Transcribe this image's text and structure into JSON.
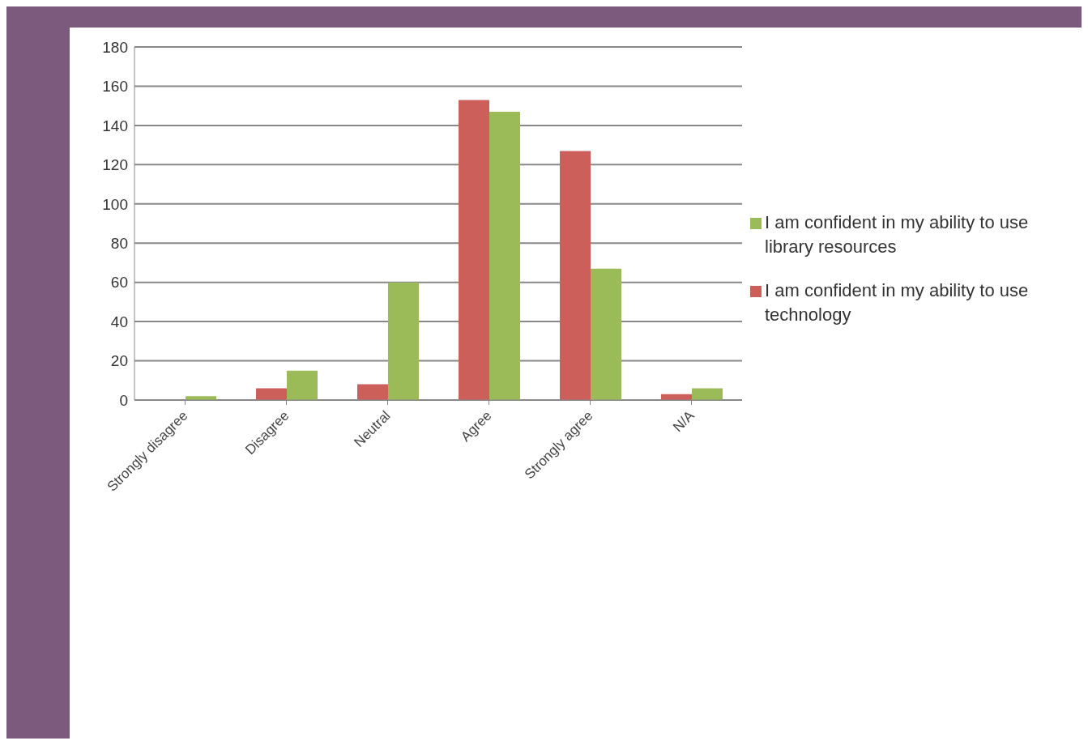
{
  "chart_data": {
    "type": "bar",
    "categories": [
      "Strongly disagree",
      "Disagree",
      "Neutral",
      "Agree",
      "Strongly agree",
      "N/A"
    ],
    "series": [
      {
        "name": "I am confident in my ability to use technology",
        "color": "#cd5f5a",
        "values": [
          0,
          6,
          8,
          153,
          127,
          3
        ]
      },
      {
        "name": "I am confident in my ability to use library resources",
        "color": "#9bbb59",
        "values": [
          2,
          15,
          60,
          147,
          67,
          6
        ]
      }
    ],
    "ylim": [
      0,
      180
    ],
    "yticks": [
      0,
      20,
      40,
      60,
      80,
      100,
      120,
      140,
      160,
      180
    ],
    "grid": "y",
    "legend": "right"
  }
}
